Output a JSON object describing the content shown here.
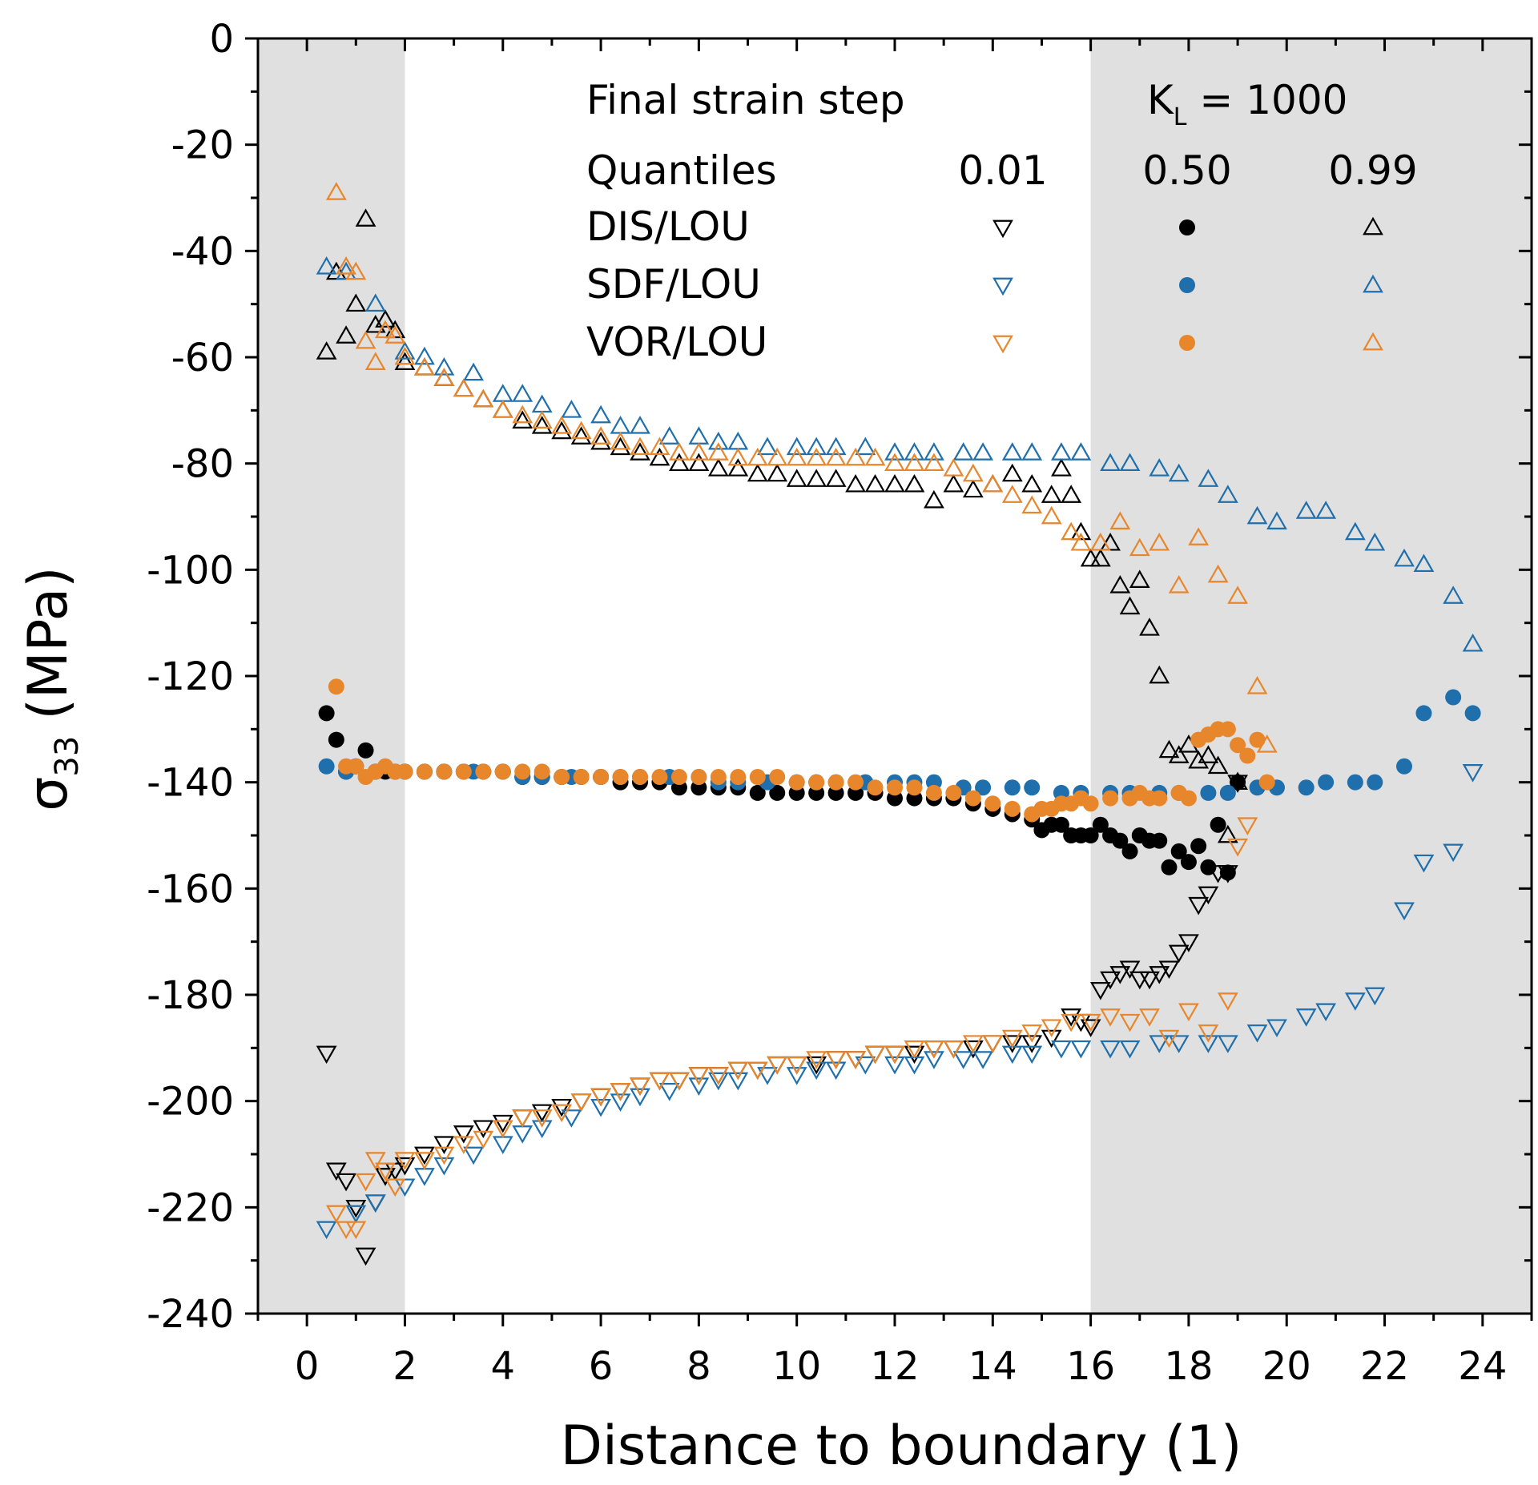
{
  "chart_data": {
    "type": "scatter",
    "xlabel": "Distance to boundary (1)",
    "ylabel_main": "σ",
    "ylabel_sub": "33",
    "ylabel_unit": "(MPa)",
    "xlim": [
      -1,
      25
    ],
    "ylim": [
      -240,
      0
    ],
    "xticks": [
      0,
      2,
      4,
      6,
      8,
      10,
      12,
      14,
      16,
      18,
      20,
      22,
      24
    ],
    "yticks": [
      0,
      -20,
      -40,
      -60,
      -80,
      -100,
      -120,
      -140,
      -160,
      -180,
      -200,
      -220,
      -240
    ],
    "shaded_regions": [
      [
        -1,
        2
      ],
      [
        16,
        25
      ]
    ],
    "legend": {
      "line1_left": "Final strain step",
      "line1_right_main": "K",
      "line1_right_sub": "L",
      "line1_right_rest": " = 1000",
      "quantiles_label": "Quantiles",
      "quantile_values": [
        "0.01",
        "0.50",
        "0.99"
      ],
      "rows": [
        "DIS/LOU",
        "SDF/LOU",
        "VOR/LOU"
      ]
    },
    "colors": {
      "DIS/LOU": "#000000",
      "SDF/LOU": "#1f6fad",
      "VOR/LOU": "#e8862c"
    },
    "series": [
      {
        "name": "DIS/LOU",
        "quantile": "0.99",
        "marker": "triangle-up",
        "x": [
          0.4,
          0.6,
          0.8,
          1.0,
          1.2,
          1.4,
          1.6,
          1.8,
          2.0,
          2.4,
          2.8,
          3.2,
          3.6,
          4.0,
          4.4,
          4.8,
          5.2,
          5.6,
          6.0,
          6.4,
          6.8,
          7.2,
          7.6,
          8.0,
          8.4,
          8.8,
          9.2,
          9.6,
          10.0,
          10.4,
          10.8,
          11.2,
          11.6,
          12.0,
          12.4,
          12.8,
          13.2,
          13.6,
          14.0,
          14.4,
          14.8,
          15.2,
          15.4,
          15.6,
          15.8,
          16.0,
          16.2,
          16.4,
          16.6,
          16.8,
          17.0,
          17.2,
          17.4,
          17.6,
          17.8,
          18.0,
          18.2,
          18.4,
          18.6,
          18.8,
          19.0
        ],
        "y": [
          -59,
          -44,
          -56,
          -50,
          -34,
          -54,
          -53,
          -55,
          -61,
          -62,
          -64,
          -66,
          -68,
          -70,
          -72,
          -73,
          -74,
          -75,
          -76,
          -77,
          -78,
          -79,
          -80,
          -80,
          -81,
          -81,
          -82,
          -82,
          -83,
          -83,
          -83,
          -84,
          -84,
          -84,
          -84,
          -87,
          -84,
          -85,
          -84,
          -82,
          -84,
          -86,
          -81,
          -86,
          -93,
          -98,
          -98,
          -95,
          -103,
          -107,
          -102,
          -111,
          -120,
          -134,
          -135,
          -133,
          -136,
          -135,
          -137,
          -150,
          -140
        ]
      },
      {
        "name": "DIS/LOU",
        "quantile": "0.50",
        "marker": "circle",
        "x": [
          0.4,
          0.6,
          0.8,
          1.0,
          1.2,
          1.4,
          1.6,
          1.8,
          2.0,
          2.4,
          2.8,
          3.2,
          3.6,
          4.0,
          4.4,
          4.8,
          5.2,
          5.6,
          6.0,
          6.4,
          6.8,
          7.2,
          7.6,
          8.0,
          8.4,
          8.8,
          9.2,
          9.6,
          10.0,
          10.4,
          10.8,
          11.2,
          11.6,
          12.0,
          12.4,
          12.8,
          13.2,
          13.6,
          14.0,
          14.4,
          14.8,
          15.0,
          15.2,
          15.4,
          15.6,
          15.8,
          16.0,
          16.2,
          16.4,
          16.6,
          16.8,
          17.0,
          17.2,
          17.4,
          17.6,
          17.8,
          18.0,
          18.2,
          18.4,
          18.6,
          18.8,
          19.0
        ],
        "y": [
          -127,
          -132,
          -138,
          -137,
          -134,
          -138,
          -138,
          -138,
          -138,
          -138,
          -138,
          -138,
          -138,
          -138,
          -139,
          -139,
          -139,
          -139,
          -139,
          -140,
          -140,
          -140,
          -141,
          -141,
          -141,
          -141,
          -142,
          -142,
          -142,
          -142,
          -142,
          -142,
          -142,
          -143,
          -143,
          -143,
          -143,
          -144,
          -145,
          -146,
          -147,
          -149,
          -148,
          -148,
          -150,
          -150,
          -150,
          -148,
          -150,
          -151,
          -153,
          -150,
          -151,
          -151,
          -156,
          -153,
          -155,
          -152,
          -156,
          -148,
          -157,
          -140
        ]
      },
      {
        "name": "DIS/LOU",
        "quantile": "0.01",
        "marker": "triangle-down",
        "x": [
          0.4,
          0.6,
          0.8,
          1.0,
          1.2,
          1.4,
          1.6,
          1.8,
          2.0,
          2.4,
          2.8,
          3.2,
          3.6,
          4.0,
          4.4,
          4.8,
          5.2,
          5.6,
          6.0,
          6.4,
          6.8,
          7.2,
          7.6,
          8.0,
          8.4,
          8.8,
          9.2,
          9.6,
          10.0,
          10.4,
          10.8,
          11.2,
          11.6,
          12.0,
          12.4,
          12.8,
          13.2,
          13.6,
          14.0,
          14.4,
          14.8,
          15.2,
          15.6,
          15.8,
          16.0,
          16.2,
          16.4,
          16.6,
          16.8,
          17.0,
          17.2,
          17.4,
          17.6,
          17.8,
          18.0,
          18.2,
          18.4,
          18.6,
          18.8,
          19.0
        ],
        "y": [
          -191,
          -213,
          -215,
          -220,
          -229,
          -219,
          -214,
          -213,
          -212,
          -210,
          -208,
          -206,
          -205,
          -204,
          -203,
          -202,
          -201,
          -200,
          -199,
          -198,
          -197,
          -196,
          -196,
          -195,
          -195,
          -194,
          -194,
          -193,
          -193,
          -193,
          -192,
          -192,
          -191,
          -191,
          -191,
          -190,
          -190,
          -190,
          -189,
          -189,
          -189,
          -188,
          -184,
          -185,
          -186,
          -179,
          -177,
          -176,
          -175,
          -177,
          -177,
          -176,
          -175,
          -172,
          -170,
          -163,
          -161,
          -157,
          -157,
          -140
        ]
      },
      {
        "name": "SDF/LOU",
        "quantile": "0.99",
        "marker": "triangle-up",
        "x": [
          0.4,
          0.8,
          1.4,
          2.0,
          2.4,
          2.8,
          3.4,
          4.0,
          4.4,
          4.8,
          5.4,
          6.0,
          6.4,
          6.8,
          7.4,
          8.0,
          8.4,
          8.8,
          9.4,
          10.0,
          10.4,
          10.8,
          11.4,
          12.0,
          12.4,
          12.8,
          13.4,
          13.8,
          14.4,
          14.8,
          15.4,
          15.8,
          16.4,
          16.8,
          17.4,
          17.8,
          18.4,
          18.8,
          19.4,
          19.8,
          20.4,
          20.8,
          21.4,
          21.8,
          22.4,
          22.8,
          23.4,
          23.8
        ],
        "y": [
          -43,
          -44,
          -50,
          -59,
          -60,
          -62,
          -63,
          -67,
          -67,
          -69,
          -70,
          -71,
          -73,
          -73,
          -75,
          -75,
          -76,
          -76,
          -77,
          -77,
          -77,
          -77,
          -77,
          -78,
          -78,
          -78,
          -78,
          -78,
          -78,
          -78,
          -78,
          -78,
          -80,
          -80,
          -81,
          -82,
          -83,
          -86,
          -90,
          -91,
          -89,
          -89,
          -93,
          -95,
          -98,
          -99,
          -105,
          -114
        ]
      },
      {
        "name": "SDF/LOU",
        "quantile": "0.50",
        "marker": "circle",
        "x": [
          0.4,
          0.8,
          1.4,
          2.0,
          2.4,
          2.8,
          3.4,
          4.0,
          4.4,
          4.8,
          5.4,
          6.0,
          6.4,
          6.8,
          7.4,
          8.0,
          8.4,
          8.8,
          9.4,
          10.0,
          10.4,
          10.8,
          11.4,
          12.0,
          12.4,
          12.8,
          13.4,
          13.8,
          14.4,
          14.8,
          15.4,
          15.8,
          16.4,
          16.8,
          17.4,
          17.8,
          18.4,
          18.8,
          19.4,
          19.8,
          20.4,
          20.8,
          21.4,
          21.8,
          22.4,
          22.8,
          23.4,
          23.8
        ],
        "y": [
          -137,
          -138,
          -138,
          -138,
          -138,
          -138,
          -138,
          -138,
          -139,
          -139,
          -139,
          -139,
          -139,
          -139,
          -139,
          -139,
          -140,
          -140,
          -140,
          -140,
          -140,
          -140,
          -140,
          -140,
          -140,
          -140,
          -141,
          -141,
          -141,
          -141,
          -142,
          -142,
          -142,
          -142,
          -142,
          -142,
          -142,
          -142,
          -141,
          -141,
          -141,
          -140,
          -140,
          -140,
          -137,
          -127,
          -124,
          -127
        ]
      },
      {
        "name": "SDF/LOU",
        "quantile": "0.01",
        "marker": "triangle-down",
        "x": [
          0.4,
          1.0,
          1.4,
          2.0,
          2.4,
          2.8,
          3.4,
          4.0,
          4.4,
          4.8,
          5.4,
          6.0,
          6.4,
          6.8,
          7.4,
          8.0,
          8.4,
          8.8,
          9.4,
          10.0,
          10.4,
          10.8,
          11.4,
          12.0,
          12.4,
          12.8,
          13.4,
          13.8,
          14.4,
          14.8,
          15.4,
          15.8,
          16.4,
          16.8,
          17.4,
          17.8,
          18.4,
          18.8,
          19.4,
          19.8,
          20.4,
          20.8,
          21.4,
          21.8,
          22.4,
          22.8,
          23.4,
          23.8
        ],
        "y": [
          -224,
          -221,
          -219,
          -216,
          -214,
          -212,
          -210,
          -208,
          -206,
          -205,
          -203,
          -201,
          -200,
          -199,
          -198,
          -197,
          -196,
          -196,
          -195,
          -195,
          -194,
          -194,
          -193,
          -193,
          -193,
          -192,
          -192,
          -192,
          -191,
          -191,
          -190,
          -190,
          -190,
          -190,
          -189,
          -189,
          -189,
          -189,
          -187,
          -186,
          -184,
          -183,
          -181,
          -180,
          -164,
          -155,
          -153,
          -138
        ]
      },
      {
        "name": "VOR/LOU",
        "quantile": "0.99",
        "marker": "triangle-up",
        "x": [
          0.6,
          0.8,
          1.0,
          1.2,
          1.4,
          1.6,
          1.8,
          2.0,
          2.4,
          2.8,
          3.2,
          3.6,
          4.0,
          4.4,
          4.8,
          5.2,
          5.6,
          6.0,
          6.4,
          6.8,
          7.2,
          7.6,
          8.0,
          8.4,
          8.8,
          9.2,
          9.6,
          10.0,
          10.4,
          10.8,
          11.2,
          11.6,
          12.0,
          12.4,
          12.8,
          13.2,
          13.6,
          14.0,
          14.4,
          14.8,
          15.2,
          15.6,
          15.8,
          16.2,
          16.6,
          17.0,
          17.4,
          17.8,
          18.2,
          18.6,
          19.0,
          19.4,
          19.6
        ],
        "y": [
          -29,
          -43,
          -44,
          -57,
          -61,
          -55,
          -56,
          -60,
          -62,
          -64,
          -66,
          -68,
          -70,
          -71,
          -72,
          -73,
          -74,
          -75,
          -76,
          -77,
          -77,
          -78,
          -78,
          -78,
          -79,
          -79,
          -79,
          -79,
          -79,
          -79,
          -79,
          -79,
          -80,
          -80,
          -80,
          -81,
          -82,
          -84,
          -86,
          -88,
          -90,
          -93,
          -95,
          -95,
          -91,
          -96,
          -95,
          -103,
          -94,
          -101,
          -105,
          -122,
          -133
        ]
      },
      {
        "name": "VOR/LOU",
        "quantile": "0.50",
        "marker": "circle",
        "x": [
          0.6,
          0.8,
          1.0,
          1.2,
          1.4,
          1.6,
          1.8,
          2.0,
          2.4,
          2.8,
          3.2,
          3.6,
          4.0,
          4.4,
          4.8,
          5.2,
          5.6,
          6.0,
          6.4,
          6.8,
          7.2,
          7.6,
          8.0,
          8.4,
          8.8,
          9.2,
          9.6,
          10.0,
          10.4,
          10.8,
          11.2,
          11.6,
          12.0,
          12.4,
          12.8,
          13.2,
          13.6,
          14.0,
          14.4,
          14.8,
          15.0,
          15.2,
          15.4,
          15.6,
          15.8,
          16.0,
          16.4,
          16.8,
          17.0,
          17.2,
          17.4,
          17.8,
          18.0,
          18.2,
          18.4,
          18.6,
          18.8,
          19.0,
          19.2,
          19.4,
          19.6
        ],
        "y": [
          -122,
          -137,
          -137,
          -139,
          -138,
          -137,
          -138,
          -138,
          -138,
          -138,
          -138,
          -138,
          -138,
          -138,
          -138,
          -139,
          -139,
          -139,
          -139,
          -139,
          -139,
          -139,
          -139,
          -139,
          -139,
          -139,
          -139,
          -140,
          -140,
          -140,
          -140,
          -141,
          -141,
          -141,
          -142,
          -142,
          -143,
          -144,
          -145,
          -146,
          -145,
          -145,
          -144,
          -144,
          -143,
          -144,
          -143,
          -143,
          -142,
          -143,
          -143,
          -142,
          -143,
          -132,
          -131,
          -130,
          -130,
          -133,
          -135,
          -132,
          -140
        ]
      },
      {
        "name": "VOR/LOU",
        "quantile": "0.01",
        "marker": "triangle-down",
        "x": [
          0.6,
          0.8,
          1.0,
          1.2,
          1.4,
          1.6,
          1.8,
          2.0,
          2.4,
          2.8,
          3.2,
          3.6,
          4.0,
          4.4,
          4.8,
          5.2,
          5.6,
          6.0,
          6.4,
          6.8,
          7.2,
          7.6,
          8.0,
          8.4,
          8.8,
          9.2,
          9.6,
          10.0,
          10.4,
          10.8,
          11.2,
          11.6,
          12.0,
          12.4,
          12.8,
          13.2,
          13.6,
          14.0,
          14.4,
          14.8,
          15.2,
          15.6,
          16.0,
          16.4,
          16.8,
          17.2,
          17.6,
          18.0,
          18.4,
          18.8,
          19.0,
          19.2
        ],
        "y": [
          -221,
          -224,
          -224,
          -215,
          -211,
          -213,
          -216,
          -211,
          -211,
          -210,
          -208,
          -207,
          -205,
          -203,
          -203,
          -202,
          -200,
          -199,
          -198,
          -197,
          -196,
          -196,
          -195,
          -195,
          -194,
          -194,
          -193,
          -193,
          -192,
          -192,
          -192,
          -191,
          -191,
          -190,
          -190,
          -190,
          -189,
          -189,
          -188,
          -187,
          -186,
          -185,
          -185,
          -184,
          -185,
          -184,
          -188,
          -183,
          -187,
          -181,
          -152,
          -148
        ]
      }
    ]
  }
}
